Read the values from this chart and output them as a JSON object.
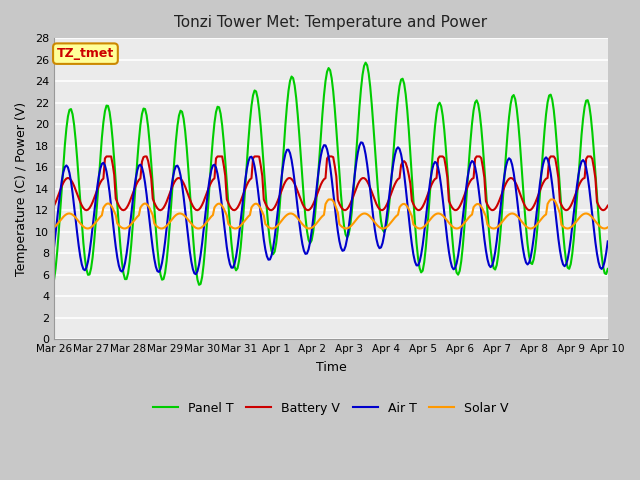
{
  "title": "Tonzi Tower Met: Temperature and Power",
  "xlabel": "Time",
  "ylabel": "Temperature (C) / Power (V)",
  "annotation": "TZ_tmet",
  "ylim": [
    0,
    28
  ],
  "yticks": [
    0,
    2,
    4,
    6,
    8,
    10,
    12,
    14,
    16,
    18,
    20,
    22,
    24,
    26,
    28
  ],
  "xtick_labels": [
    "Mar 26",
    "Mar 27",
    "Mar 28",
    "Mar 29",
    "Mar 30",
    "Mar 31",
    "Apr 1",
    "Apr 2",
    "Apr 3",
    "Apr 4",
    "Apr 5",
    "Apr 6",
    "Apr 7",
    "Apr 8",
    "Apr 9",
    "Apr 10"
  ],
  "colors": {
    "panel_t": "#00CC00",
    "battery_v": "#CC0000",
    "air_t": "#0000CC",
    "solar_v": "#FF9900"
  },
  "legend_labels": [
    "Panel T",
    "Battery V",
    "Air T",
    "Solar V"
  ],
  "plot_bg_color": "#EBEBEB",
  "grid_color": "#FFFFFF",
  "linewidth": 1.5
}
